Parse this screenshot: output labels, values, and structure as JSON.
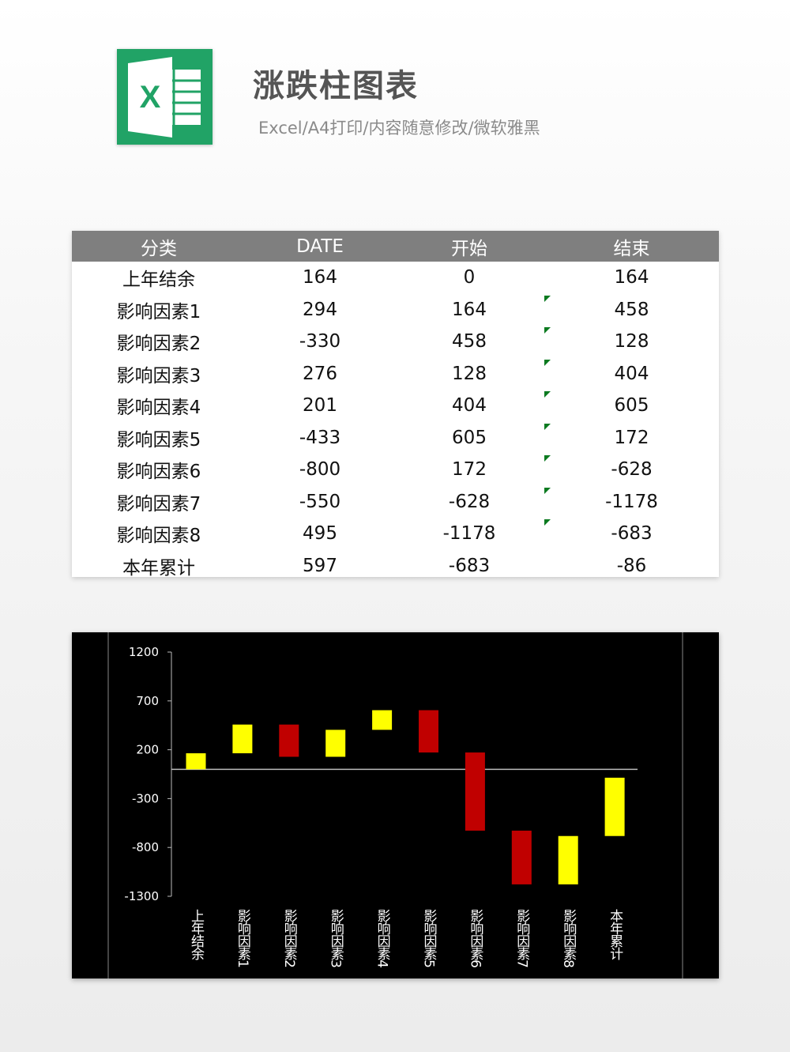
{
  "header": {
    "title": "涨跌柱图表",
    "subtitle": "Excel/A4打印/内容随意修改/微软雅黑",
    "logo_letter": "X",
    "logo_color": "#21a366"
  },
  "table": {
    "columns": [
      "分类",
      "DATE",
      "开始",
      "结束"
    ],
    "rows": [
      {
        "cat": "上年结余",
        "date": "164",
        "start": "0",
        "end": "164",
        "flag": false
      },
      {
        "cat": "影响因素1",
        "date": "294",
        "start": "164",
        "end": "458",
        "flag": true
      },
      {
        "cat": "影响因素2",
        "date": "-330",
        "start": "458",
        "end": "128",
        "flag": true
      },
      {
        "cat": "影响因素3",
        "date": "276",
        "start": "128",
        "end": "404",
        "flag": true
      },
      {
        "cat": "影响因素4",
        "date": "201",
        "start": "404",
        "end": "605",
        "flag": true
      },
      {
        "cat": "影响因素5",
        "date": "-433",
        "start": "605",
        "end": "172",
        "flag": true
      },
      {
        "cat": "影响因素6",
        "date": "-800",
        "start": "172",
        "end": "-628",
        "flag": true
      },
      {
        "cat": "影响因素7",
        "date": "-550",
        "start": "-628",
        "end": "-1178",
        "flag": true
      },
      {
        "cat": "影响因素8",
        "date": "495",
        "start": "-1178",
        "end": "-683",
        "flag": true
      },
      {
        "cat": "本年累计",
        "date": "597",
        "start": "-683",
        "end": "-86",
        "flag": false
      }
    ]
  },
  "chart_data": {
    "type": "bar",
    "subtype": "floating-waterfall",
    "categories": [
      "上年结余",
      "影响因素1",
      "影响因素2",
      "影响因素3",
      "影响因素4",
      "影响因素5",
      "影响因素6",
      "影响因素7",
      "影响因素8",
      "本年累计"
    ],
    "start": [
      0,
      164,
      458,
      128,
      404,
      605,
      172,
      -628,
      -1178,
      -683
    ],
    "end": [
      164,
      458,
      128,
      404,
      605,
      172,
      -628,
      -1178,
      -683,
      -86
    ],
    "colors": [
      "#ffff00",
      "#ffff00",
      "#c00000",
      "#ffff00",
      "#ffff00",
      "#c00000",
      "#c00000",
      "#c00000",
      "#ffff00",
      "#ffff00"
    ],
    "up_color": "#ffff00",
    "down_color": "#c00000",
    "yticks": [
      1200,
      700,
      200,
      -300,
      -800,
      -1300
    ],
    "ylim": [
      -1300,
      1200
    ],
    "background": "#000000",
    "grid": false
  }
}
